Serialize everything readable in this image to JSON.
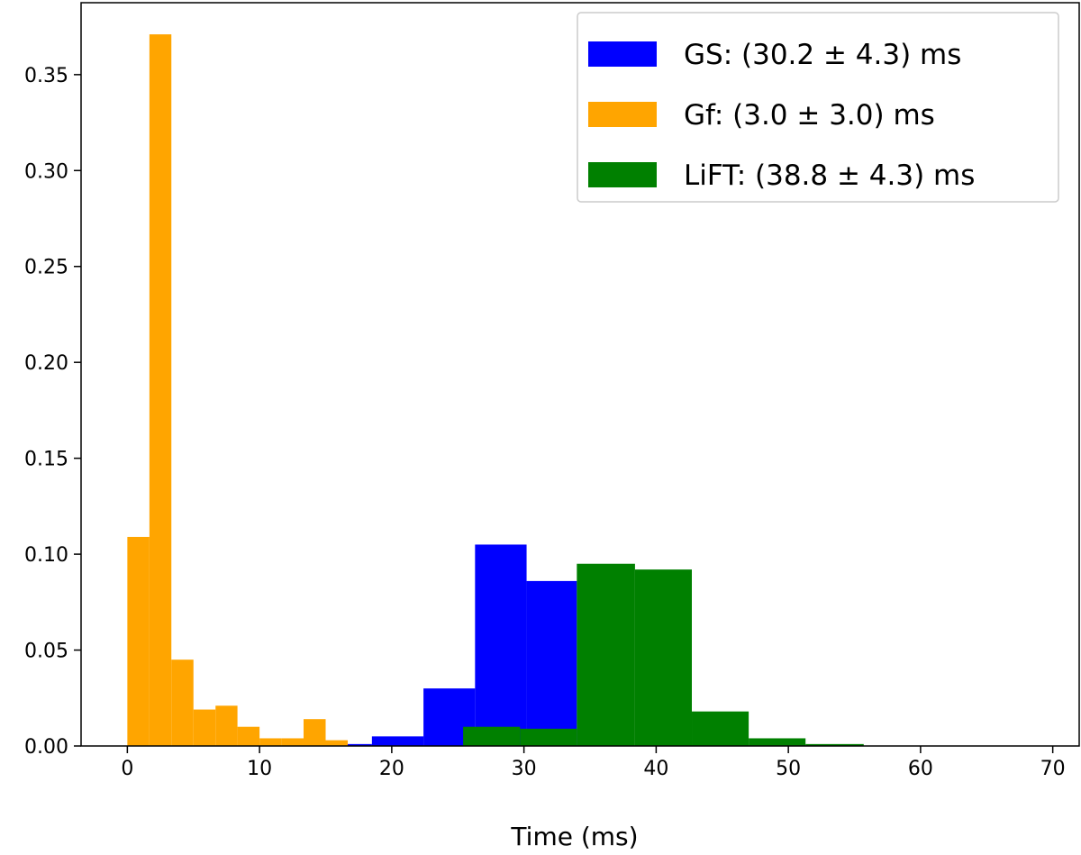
{
  "chart_data": {
    "type": "bar",
    "xlabel": "Time (ms)",
    "ylabel": "",
    "title": "",
    "xlim": [
      -3.5,
      72
    ],
    "ylim": [
      0,
      0.3875
    ],
    "xticks": [
      0,
      10,
      20,
      30,
      40,
      50,
      60,
      70
    ],
    "xtick_labels": [
      "0",
      "10",
      "20",
      "30",
      "40",
      "50",
      "60",
      "70"
    ],
    "yticks": [
      0.0,
      0.05,
      0.1,
      0.15,
      0.2,
      0.25,
      0.3,
      0.35
    ],
    "ytick_labels": [
      "0.00",
      "0.05",
      "0.10",
      "0.15",
      "0.20",
      "0.25",
      "0.30",
      "0.35"
    ],
    "grid": false,
    "legend_position": "top-right",
    "series": [
      {
        "name": "Gf:  (3.0 ± 3.0) ms",
        "color": "#ffa500",
        "bins": [
          {
            "x0": 0.0,
            "x1": 1.67,
            "y": 0.109
          },
          {
            "x0": 1.67,
            "x1": 3.33,
            "y": 0.371
          },
          {
            "x0": 3.33,
            "x1": 5.0,
            "y": 0.045
          },
          {
            "x0": 5.0,
            "x1": 6.67,
            "y": 0.019
          },
          {
            "x0": 6.67,
            "x1": 8.33,
            "y": 0.021
          },
          {
            "x0": 8.33,
            "x1": 10.0,
            "y": 0.01
          },
          {
            "x0": 10.0,
            "x1": 11.67,
            "y": 0.004
          },
          {
            "x0": 11.67,
            "x1": 13.33,
            "y": 0.004
          },
          {
            "x0": 13.33,
            "x1": 15.0,
            "y": 0.014
          },
          {
            "x0": 15.0,
            "x1": 16.67,
            "y": 0.003
          }
        ]
      },
      {
        "name": "GS:  (30.2 ± 4.3) ms",
        "color": "#0000ff",
        "bins": [
          {
            "x0": 16.67,
            "x1": 18.5,
            "y": 0.001
          },
          {
            "x0": 18.5,
            "x1": 22.4,
            "y": 0.005
          },
          {
            "x0": 22.4,
            "x1": 26.3,
            "y": 0.03
          },
          {
            "x0": 26.3,
            "x1": 30.2,
            "y": 0.105
          },
          {
            "x0": 30.2,
            "x1": 34.0,
            "y": 0.086
          }
        ]
      },
      {
        "name": "LiFT:  (38.8 ± 4.3) ms",
        "color": "#008000",
        "bins": [
          {
            "x0": 25.4,
            "x1": 29.7,
            "y": 0.01
          },
          {
            "x0": 29.7,
            "x1": 34.0,
            "y": 0.009
          },
          {
            "x0": 34.0,
            "x1": 38.4,
            "y": 0.095
          },
          {
            "x0": 38.4,
            "x1": 42.7,
            "y": 0.092
          },
          {
            "x0": 42.7,
            "x1": 47.0,
            "y": 0.018
          },
          {
            "x0": 47.0,
            "x1": 51.3,
            "y": 0.004
          },
          {
            "x0": 51.3,
            "x1": 55.7,
            "y": 0.001
          }
        ]
      }
    ],
    "legend_order": [
      1,
      0,
      2
    ]
  }
}
